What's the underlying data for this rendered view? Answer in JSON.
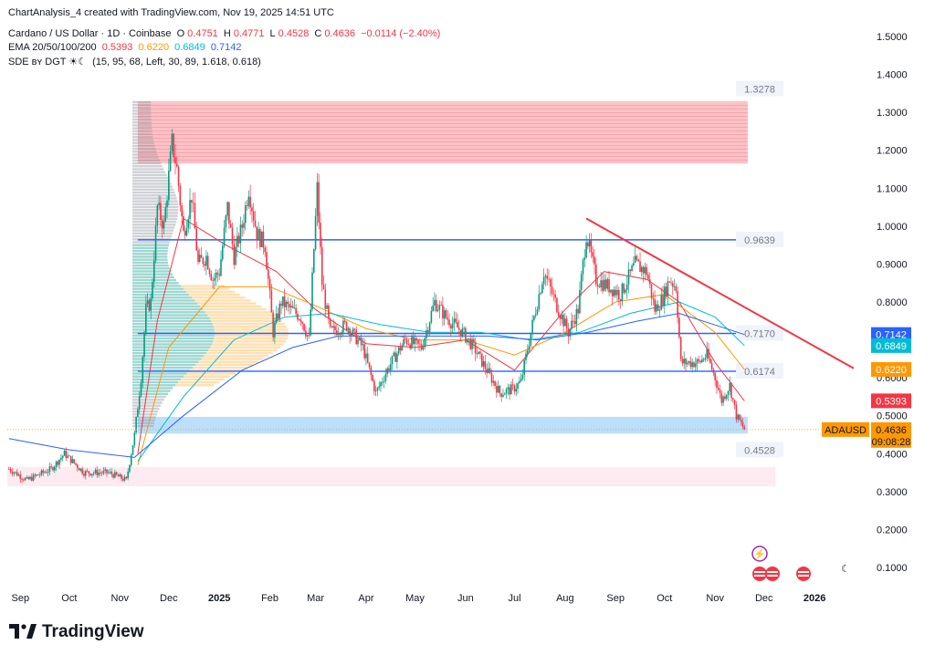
{
  "header": {
    "credit": "ChartAnalysis_4 created with TradingView.com, Nov 19, 2025 14:51 UTC",
    "symbol": "Cardano / US Dollar · 1D · Coinbase",
    "open_label": "O",
    "open": "0.4751",
    "high_label": "H",
    "high": "0.4771",
    "low_label": "L",
    "low": "0.4528",
    "close_label": "C",
    "close": "0.4636",
    "change": "−0.0114 (−2.40%)",
    "ema_label": "EMA 20/50/100/200",
    "ema20": "0.5393",
    "ema50": "0.6220",
    "ema100": "0.6849",
    "ema200": "0.7142",
    "sde_label": "SDE ʙʏ DGT ☀☾",
    "sde_params": "(15, 95, 68, Left, 30, 89, 1.618, 0.618)"
  },
  "brand": {
    "name": "TradingView"
  },
  "colors": {
    "up": "#089981",
    "down": "#f23645",
    "ema20": "#f23645",
    "ema50": "#ff9800",
    "ema100": "#00bcd4",
    "ema200": "#2962ff",
    "level": "#2962ff",
    "trend": "#f23645"
  },
  "chart_data": {
    "type": "candlestick",
    "symbol": "ADAUSD",
    "y_axis": {
      "ticks": [
        "1.5000",
        "1.4000",
        "1.3000",
        "1.2000",
        "1.1000",
        "1.0000",
        "0.9000",
        "0.8000",
        "0.6000",
        "0.5000",
        "0.4000",
        "0.3000",
        "0.2000",
        "0.1000"
      ],
      "ylim": [
        0.07,
        1.55
      ]
    },
    "x_axis": {
      "ticks": [
        {
          "label": "Sep",
          "date": "2024-09-01"
        },
        {
          "label": "Oct",
          "date": "2024-10-01"
        },
        {
          "label": "Nov",
          "date": "2024-11-01"
        },
        {
          "label": "Dec",
          "date": "2024-12-01"
        },
        {
          "label": "2025",
          "date": "2025-01-01",
          "bold": true
        },
        {
          "label": "Feb",
          "date": "2025-02-01"
        },
        {
          "label": "Mar",
          "date": "2025-03-01"
        },
        {
          "label": "Apr",
          "date": "2025-04-01"
        },
        {
          "label": "May",
          "date": "2025-05-01"
        },
        {
          "label": "Jun",
          "date": "2025-06-01"
        },
        {
          "label": "Jul",
          "date": "2025-07-01"
        },
        {
          "label": "Aug",
          "date": "2025-08-01"
        },
        {
          "label": "Sep",
          "date": "2025-09-01"
        },
        {
          "label": "Oct",
          "date": "2025-10-01"
        },
        {
          "label": "Nov",
          "date": "2025-11-01"
        },
        {
          "label": "Dec",
          "date": "2025-12-01"
        },
        {
          "label": "2026",
          "date": "2026-01-01",
          "bold": true
        }
      ],
      "range": [
        "2024-08-24",
        "2026-01-25"
      ]
    },
    "price_path": [
      [
        "2024-08-25",
        0.36
      ],
      [
        "2024-09-05",
        0.33
      ],
      [
        "2024-09-20",
        0.36
      ],
      [
        "2024-09-28",
        0.4
      ],
      [
        "2024-10-10",
        0.35
      ],
      [
        "2024-10-25",
        0.35
      ],
      [
        "2024-11-05",
        0.33
      ],
      [
        "2024-11-10",
        0.45
      ],
      [
        "2024-11-14",
        0.6
      ],
      [
        "2024-11-17",
        0.78
      ],
      [
        "2024-11-20",
        0.8
      ],
      [
        "2024-11-24",
        1.05
      ],
      [
        "2024-11-28",
        1.0
      ],
      [
        "2024-12-03",
        1.22
      ],
      [
        "2024-12-06",
        1.15
      ],
      [
        "2024-12-10",
        0.98
      ],
      [
        "2024-12-15",
        1.08
      ],
      [
        "2024-12-19",
        0.9
      ],
      [
        "2024-12-24",
        0.92
      ],
      [
        "2024-12-28",
        0.86
      ],
      [
        "2025-01-01",
        0.88
      ],
      [
        "2025-01-06",
        1.05
      ],
      [
        "2025-01-10",
        0.92
      ],
      [
        "2025-01-15",
        1.0
      ],
      [
        "2025-01-19",
        1.1
      ],
      [
        "2025-01-24",
        0.98
      ],
      [
        "2025-01-29",
        0.95
      ],
      [
        "2025-02-03",
        0.72
      ],
      [
        "2025-02-08",
        0.8
      ],
      [
        "2025-02-14",
        0.78
      ],
      [
        "2025-02-20",
        0.76
      ],
      [
        "2025-02-25",
        0.7
      ],
      [
        "2025-03-02",
        1.1
      ],
      [
        "2025-03-05",
        0.85
      ],
      [
        "2025-03-10",
        0.72
      ],
      [
        "2025-03-20",
        0.74
      ],
      [
        "2025-03-30",
        0.68
      ],
      [
        "2025-04-07",
        0.56
      ],
      [
        "2025-04-15",
        0.63
      ],
      [
        "2025-04-25",
        0.7
      ],
      [
        "2025-05-05",
        0.68
      ],
      [
        "2025-05-13",
        0.8
      ],
      [
        "2025-05-20",
        0.76
      ],
      [
        "2025-05-30",
        0.72
      ],
      [
        "2025-06-06",
        0.68
      ],
      [
        "2025-06-14",
        0.62
      ],
      [
        "2025-06-22",
        0.56
      ],
      [
        "2025-06-30",
        0.57
      ],
      [
        "2025-07-05",
        0.59
      ],
      [
        "2025-07-11",
        0.72
      ],
      [
        "2025-07-19",
        0.88
      ],
      [
        "2025-07-26",
        0.8
      ],
      [
        "2025-08-03",
        0.72
      ],
      [
        "2025-08-09",
        0.78
      ],
      [
        "2025-08-14",
        0.98
      ],
      [
        "2025-08-20",
        0.86
      ],
      [
        "2025-08-28",
        0.84
      ],
      [
        "2025-09-04",
        0.82
      ],
      [
        "2025-09-13",
        0.9
      ],
      [
        "2025-09-20",
        0.88
      ],
      [
        "2025-09-25",
        0.78
      ],
      [
        "2025-09-30",
        0.81
      ],
      [
        "2025-10-04",
        0.86
      ],
      [
        "2025-10-08",
        0.84
      ],
      [
        "2025-10-11",
        0.64
      ],
      [
        "2025-10-16",
        0.64
      ],
      [
        "2025-10-22",
        0.64
      ],
      [
        "2025-10-27",
        0.66
      ],
      [
        "2025-11-01",
        0.6
      ],
      [
        "2025-11-05",
        0.54
      ],
      [
        "2025-11-10",
        0.58
      ],
      [
        "2025-11-14",
        0.5
      ],
      [
        "2025-11-19",
        0.4636
      ]
    ],
    "ema_series": [
      {
        "name": "EMA 20",
        "color": "#f23645",
        "last": 0.5393,
        "points": [
          [
            "2024-11-12",
            0.4
          ],
          [
            "2024-11-24",
            0.75
          ],
          [
            "2024-12-10",
            1.02
          ],
          [
            "2025-01-05",
            0.95
          ],
          [
            "2025-02-05",
            0.88
          ],
          [
            "2025-03-01",
            0.78
          ],
          [
            "2025-04-01",
            0.69
          ],
          [
            "2025-05-01",
            0.68
          ],
          [
            "2025-06-01",
            0.7
          ],
          [
            "2025-07-01",
            0.62
          ],
          [
            "2025-08-01",
            0.78
          ],
          [
            "2025-08-25",
            0.88
          ],
          [
            "2025-09-20",
            0.86
          ],
          [
            "2025-10-10",
            0.8
          ],
          [
            "2025-11-01",
            0.64
          ],
          [
            "2025-11-19",
            0.5393
          ]
        ]
      },
      {
        "name": "EMA 50",
        "color": "#ff9800",
        "last": 0.622,
        "points": [
          [
            "2024-11-12",
            0.37
          ],
          [
            "2024-12-01",
            0.68
          ],
          [
            "2025-01-01",
            0.84
          ],
          [
            "2025-02-01",
            0.84
          ],
          [
            "2025-03-01",
            0.79
          ],
          [
            "2025-04-01",
            0.73
          ],
          [
            "2025-05-01",
            0.7
          ],
          [
            "2025-06-01",
            0.7
          ],
          [
            "2025-07-01",
            0.66
          ],
          [
            "2025-08-01",
            0.72
          ],
          [
            "2025-09-01",
            0.8
          ],
          [
            "2025-10-01",
            0.82
          ],
          [
            "2025-11-01",
            0.72
          ],
          [
            "2025-11-19",
            0.622
          ]
        ]
      },
      {
        "name": "EMA 100",
        "color": "#00bcd4",
        "last": 0.6849,
        "points": [
          [
            "2024-11-12",
            0.38
          ],
          [
            "2024-12-10",
            0.55
          ],
          [
            "2025-01-10",
            0.7
          ],
          [
            "2025-02-10",
            0.76
          ],
          [
            "2025-03-10",
            0.77
          ],
          [
            "2025-04-10",
            0.74
          ],
          [
            "2025-05-10",
            0.72
          ],
          [
            "2025-06-10",
            0.72
          ],
          [
            "2025-07-10",
            0.7
          ],
          [
            "2025-08-10",
            0.72
          ],
          [
            "2025-09-10",
            0.77
          ],
          [
            "2025-10-10",
            0.8
          ],
          [
            "2025-11-01",
            0.76
          ],
          [
            "2025-11-19",
            0.6849
          ]
        ]
      },
      {
        "name": "EMA 200",
        "color": "#2962ff",
        "last": 0.7142,
        "points": [
          [
            "2024-08-25",
            0.44
          ],
          [
            "2024-10-01",
            0.41
          ],
          [
            "2024-11-10",
            0.39
          ],
          [
            "2024-12-10",
            0.5
          ],
          [
            "2025-01-15",
            0.62
          ],
          [
            "2025-02-15",
            0.68
          ],
          [
            "2025-03-15",
            0.71
          ],
          [
            "2025-04-15",
            0.71
          ],
          [
            "2025-05-15",
            0.71
          ],
          [
            "2025-06-15",
            0.71
          ],
          [
            "2025-07-15",
            0.7
          ],
          [
            "2025-08-15",
            0.72
          ],
          [
            "2025-09-15",
            0.75
          ],
          [
            "2025-10-10",
            0.77
          ],
          [
            "2025-11-19",
            0.7142
          ]
        ]
      }
    ],
    "levels": [
      {
        "value": 0.9639,
        "label": "0.9639",
        "from": "2024-11-12",
        "to": "2025-11-21"
      },
      {
        "value": 0.717,
        "label": "0.7170",
        "from": "2024-11-12",
        "to": "2025-11-21"
      },
      {
        "value": 0.6174,
        "label": "0.6174",
        "from": "2024-11-12",
        "to": "2025-11-21"
      }
    ],
    "zones": [
      {
        "name": "supply",
        "top": 1.3278,
        "bottom": 1.165,
        "label": "1.3278",
        "from": "2024-11-12",
        "to": "2025-11-21",
        "color": "#f23645"
      },
      {
        "name": "demand",
        "top": 0.4971,
        "bottom": 0.4528,
        "label": "0.4528",
        "from": "2024-11-12",
        "to": "2025-11-21",
        "color": "#2196f3"
      },
      {
        "name": "lower",
        "top": 0.365,
        "bottom": 0.314,
        "from": "2024-08-24",
        "to": "2025-12-08",
        "color": "#f48fb1"
      }
    ],
    "trendline": {
      "from": [
        "2025-08-14",
        1.02
      ],
      "to": [
        "2026-01-25",
        0.625
      ]
    },
    "price_tags": [
      {
        "value": 0.7142,
        "label": "0.7142",
        "color": "#2962ff"
      },
      {
        "value": 0.6849,
        "label": "0.6849",
        "color": "#00bcd4"
      },
      {
        "value": 0.622,
        "label": "0.6220",
        "color": "#ff9800"
      },
      {
        "value": 0.5393,
        "label": "0.5393",
        "color": "#f23645"
      }
    ],
    "last_price": {
      "symbol": "ADAUSD",
      "value": 0.4636,
      "label": "0.4636",
      "countdown": "09:08:28",
      "color": "#ff9800"
    }
  }
}
